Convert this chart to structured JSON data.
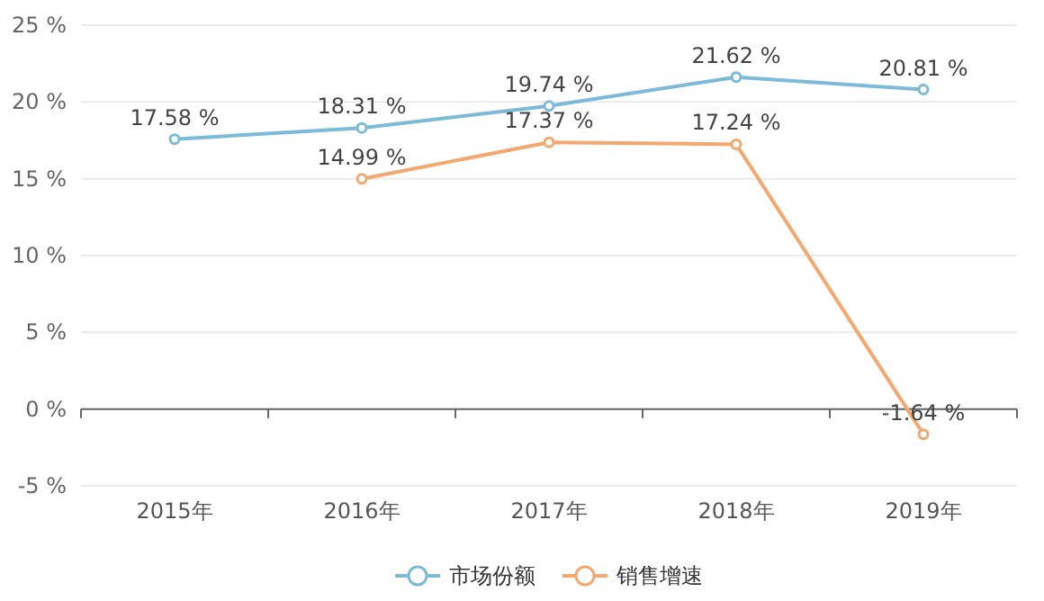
{
  "chart_data": {
    "type": "line",
    "categories": [
      "2015年",
      "2016年",
      "2017年",
      "2018年",
      "2019年"
    ],
    "series": [
      {
        "name": "市场份额",
        "color": "#7cbad9",
        "values": [
          17.58,
          18.31,
          19.74,
          21.62,
          20.81
        ],
        "value_labels": [
          "17.58 %",
          "18.31 %",
          "19.74 %",
          "21.62 %",
          "20.81 %"
        ]
      },
      {
        "name": "销售增速",
        "color": "#f2a86e",
        "values": [
          null,
          14.99,
          17.37,
          17.24,
          -1.64
        ],
        "value_labels": [
          null,
          "14.99 %",
          "17.37 %",
          "17.24 %",
          "-1.64 %"
        ]
      }
    ],
    "ylim": [
      -5,
      25
    ],
    "yticks": [
      {
        "value": -5,
        "label": "-5 %"
      },
      {
        "value": 0,
        "label": "0 %"
      },
      {
        "value": 5,
        "label": "5 %"
      },
      {
        "value": 10,
        "label": "10 %"
      },
      {
        "value": 15,
        "label": "15 %"
      },
      {
        "value": 20,
        "label": "20 %"
      },
      {
        "value": 25,
        "label": "25 %"
      }
    ],
    "grid": "y",
    "legend": "bottom",
    "marker": "circle",
    "line_style": "solid"
  }
}
